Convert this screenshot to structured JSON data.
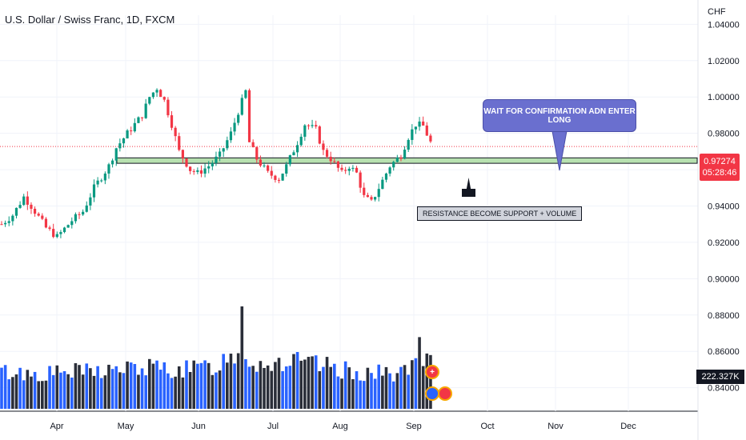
{
  "header": {
    "title": "U.S. Dollar / Swiss Franc, 1D, FXCM",
    "currency": "CHF"
  },
  "price_label": {
    "price": "0.97274",
    "countdown": "05:28:46",
    "color": "#f23645"
  },
  "volume_label": "222.327K",
  "annotations": {
    "callout": "WAIT FOR CONFIRMATION ADN ENTER LONG",
    "note": "RESISTANCE BECOME SUPPORT + VOLUME"
  },
  "event_badges": [
    {
      "icon": "plus-icon",
      "glyph": "+"
    },
    {
      "icon": "us-flag-icon",
      "glyph": ""
    },
    {
      "icon": "ch-flag-icon",
      "glyph": ""
    }
  ],
  "colors": {
    "up": "#089981",
    "down": "#f23645",
    "volume_up": "#2962ff",
    "volume_down": "#2a2e39",
    "zone": "#b7e1b0",
    "callout": "#6a6fcf",
    "last_price_line": "#f23645"
  },
  "chart_data": {
    "type": "candlestick",
    "instrument": "USD/CHF",
    "timeframe": "1D",
    "x_ticks": [
      "Apr",
      "May",
      "Jun",
      "Jul",
      "Aug",
      "Sep",
      "Oct",
      "Nov",
      "Dec"
    ],
    "y_ticks": [
      "1.04000",
      "1.02000",
      "1.00000",
      "0.98000",
      "0.96000",
      "0.94000",
      "0.92000",
      "0.90000",
      "0.88000",
      "0.86000",
      "0.84000"
    ],
    "ylim": [
      0.835,
      1.045
    ],
    "last_price": 0.97274,
    "support_zone": {
      "low": 0.9635,
      "high": 0.9665
    },
    "close_path": [
      [
        0,
        0.93
      ],
      [
        3,
        0.935
      ],
      [
        6,
        0.945
      ],
      [
        8,
        0.94
      ],
      [
        12,
        0.928
      ],
      [
        15,
        0.923
      ],
      [
        19,
        0.932
      ],
      [
        22,
        0.937
      ],
      [
        25,
        0.95
      ],
      [
        29,
        0.962
      ],
      [
        31,
        0.972
      ],
      [
        34,
        0.98
      ],
      [
        38,
        0.99
      ],
      [
        40,
        1.0
      ],
      [
        42,
        1.005
      ],
      [
        44,
        0.998
      ],
      [
        46,
        0.985
      ],
      [
        48,
        0.97
      ],
      [
        51,
        0.96
      ],
      [
        53,
        0.958
      ],
      [
        56,
        0.962
      ],
      [
        59,
        0.968
      ],
      [
        62,
        0.98
      ],
      [
        64,
        0.992
      ],
      [
        66,
        1.003
      ],
      [
        67,
        0.975
      ],
      [
        69,
        0.966
      ],
      [
        72,
        0.958
      ],
      [
        75,
        0.955
      ],
      [
        77,
        0.962
      ],
      [
        80,
        0.975
      ],
      [
        82,
        0.985
      ],
      [
        85,
        0.982
      ],
      [
        87,
        0.97
      ],
      [
        89,
        0.966
      ],
      [
        92,
        0.958
      ],
      [
        94,
        0.962
      ],
      [
        96,
        0.958
      ],
      [
        98,
        0.945
      ],
      [
        100,
        0.942
      ],
      [
        102,
        0.95
      ],
      [
        105,
        0.962
      ],
      [
        108,
        0.968
      ],
      [
        110,
        0.978
      ],
      [
        112,
        0.985
      ],
      [
        114,
        0.984
      ],
      [
        116,
        0.975
      ]
    ],
    "volume_path": [
      [
        0,
        0.36
      ],
      [
        10,
        0.34
      ],
      [
        20,
        0.36
      ],
      [
        30,
        0.38
      ],
      [
        40,
        0.4
      ],
      [
        50,
        0.38
      ],
      [
        58,
        0.42
      ],
      [
        63,
        0.55
      ],
      [
        66,
        0.5
      ],
      [
        70,
        0.44
      ],
      [
        78,
        0.46
      ],
      [
        86,
        0.42
      ],
      [
        95,
        0.36
      ],
      [
        105,
        0.34
      ],
      [
        112,
        0.4
      ],
      [
        116,
        0.46
      ]
    ],
    "volume_spikes": [
      {
        "bar": 65,
        "value": 1.0
      },
      {
        "bar": 113,
        "value": 0.7
      }
    ]
  }
}
